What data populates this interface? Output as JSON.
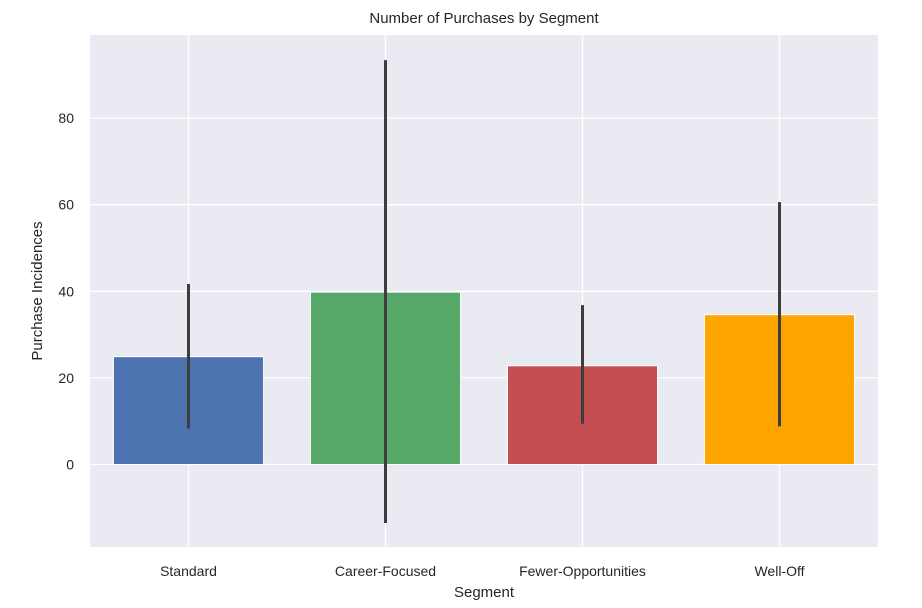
{
  "chart_data": {
    "type": "bar",
    "title": "Number of Purchases by Segment",
    "xlabel": "Segment",
    "ylabel": "Purchase Incidences",
    "categories": [
      "Standard",
      "Career-Focused",
      "Fewer-Opportunities",
      "Well-Off"
    ],
    "values": [
      24.9,
      39.8,
      22.8,
      34.6
    ],
    "error_low": [
      8.3,
      -13.5,
      9.4,
      8.8
    ],
    "error_high": [
      41.7,
      93.4,
      36.8,
      60.6
    ],
    "colors": [
      "#4c72b0",
      "#55a868",
      "#c44e52",
      "#ffa500"
    ],
    "error_color": "#3d3d3d",
    "ylim": [
      -19.5,
      99
    ],
    "yticks": [
      0,
      20,
      40,
      60,
      80
    ],
    "grid": true,
    "background": "#eaeaf2"
  }
}
